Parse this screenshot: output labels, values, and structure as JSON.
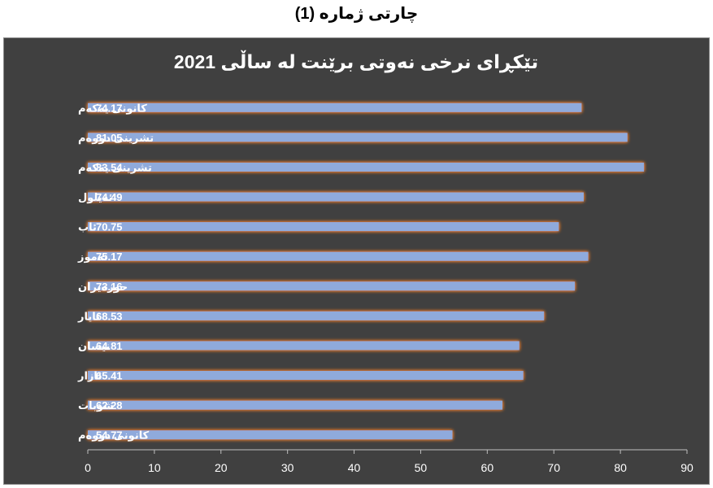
{
  "page": {
    "heading": "چارتی ژمارە (1)"
  },
  "chart_data": {
    "type": "bar",
    "orientation": "horizontal",
    "title": "تێکڕای نرخی نەوتی برێنت لە ساڵی 2021",
    "xlabel": "",
    "ylabel": "",
    "categories": [
      "کانونی یەکەم",
      "تشرینی دووەم",
      "تشرینی یەکەم",
      "ئەیلول",
      "ئاب",
      "تەموز",
      "حوزەیران",
      "ئایار",
      "نیسان",
      "ئازار",
      "شوبات",
      "کانونی دووەم"
    ],
    "values": [
      74.17,
      81.05,
      83.54,
      74.49,
      70.75,
      75.17,
      73.16,
      68.53,
      64.81,
      65.41,
      62.28,
      54.77
    ],
    "xlim": [
      0,
      90
    ],
    "xticks": [
      "0",
      "10",
      "20",
      "30",
      "40",
      "50",
      "60",
      "70",
      "80",
      "90"
    ],
    "grid": false,
    "legend": "none",
    "data_labels": true,
    "colors": {
      "background": "#404040",
      "bar": "#8faadc",
      "bar_glow": "#ed7d31",
      "text": "#ffffff",
      "axis": "#bfbfbf"
    }
  }
}
